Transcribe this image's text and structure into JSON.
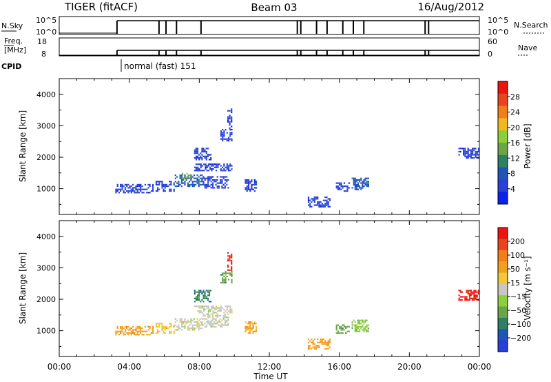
{
  "header": {
    "title_left": "TIGER (fitACF)",
    "title_center": "Beam 03",
    "title_right": "16/Aug/2012"
  },
  "status_panels": {
    "nsky_label": "N.Sky",
    "nsky_ticks": [
      "10^5",
      "10^0"
    ],
    "nsearch_label": "N.Search",
    "nsearch_ticks": [
      "10^5",
      "10^0"
    ],
    "freq_label_1": "Freq.",
    "freq_label_2": "[MHz]",
    "freq_ticks": [
      "18",
      "8"
    ],
    "nave_label": "Nave",
    "nave_ticks": [
      "60",
      "0"
    ],
    "cpid_label": "CPID",
    "cpid_value": "normal (fast) 151",
    "mode_change_hours": [
      3.3,
      5.7,
      6.1,
      6.7,
      8.1,
      13.6,
      13.8,
      14.7,
      15.3,
      16.2,
      16.8,
      17.4,
      20.9,
      21.1
    ]
  },
  "chart_data": [
    {
      "type": "scatter",
      "panel": "power",
      "ylabel": "Slant Range [km]",
      "xlabel": "",
      "xlim": [
        0,
        24
      ],
      "ylim": [
        180,
        4500
      ],
      "yticks": [
        "1000",
        "2000",
        "3000",
        "4000"
      ],
      "colorbar": {
        "label": "Power [dB]",
        "ticks": [
          "28",
          "24",
          "20",
          "16",
          "12",
          "8",
          "4"
        ],
        "colors": [
          "#0b22e8",
          "#2a3fd4",
          "#1f55b8",
          "#2f7f62",
          "#6aa54a",
          "#8ccf3a",
          "#f0b820",
          "#f07e1a",
          "#e84420",
          "#e81810"
        ]
      },
      "echo_regions": [
        {
          "x": [
            3.2,
            5.4
          ],
          "y": [
            850,
            1150
          ],
          "level": 1
        },
        {
          "x": [
            5.5,
            6.6
          ],
          "y": [
            900,
            1250
          ],
          "level": 1
        },
        {
          "x": [
            6.6,
            8.2
          ],
          "y": [
            1050,
            1450
          ],
          "level": 2
        },
        {
          "x": [
            7.0,
            7.6
          ],
          "y": [
            1300,
            1500
          ],
          "level": 4
        },
        {
          "x": [
            8.2,
            9.7
          ],
          "y": [
            1000,
            1400
          ],
          "level": 1
        },
        {
          "x": [
            7.7,
            9.9
          ],
          "y": [
            1550,
            1800
          ],
          "level": 1
        },
        {
          "x": [
            7.7,
            8.7
          ],
          "y": [
            1900,
            2300
          ],
          "level": 1
        },
        {
          "x": [
            9.2,
            9.9
          ],
          "y": [
            2500,
            2900
          ],
          "level": 1
        },
        {
          "x": [
            9.6,
            9.9
          ],
          "y": [
            2900,
            3550
          ],
          "level": 1
        },
        {
          "x": [
            10.6,
            11.3
          ],
          "y": [
            900,
            1300
          ],
          "level": 1
        },
        {
          "x": [
            14.2,
            15.5
          ],
          "y": [
            400,
            750
          ],
          "level": 1
        },
        {
          "x": [
            15.8,
            16.6
          ],
          "y": [
            900,
            1200
          ],
          "level": 1
        },
        {
          "x": [
            16.7,
            17.7
          ],
          "y": [
            950,
            1350
          ],
          "level": 2
        },
        {
          "x": [
            22.8,
            24.0
          ],
          "y": [
            1950,
            2300
          ],
          "level": 1
        }
      ]
    },
    {
      "type": "scatter",
      "panel": "velocity",
      "ylabel": "Slant Range [km]",
      "xlabel": "Time UT",
      "xlim": [
        0,
        24
      ],
      "ylim": [
        180,
        4500
      ],
      "xticks": [
        "00:00",
        "04:00",
        "08:00",
        "12:00",
        "16:00",
        "20:00",
        "00:00"
      ],
      "yticks": [
        "1000",
        "2000",
        "3000",
        "4000"
      ],
      "colorbar": {
        "label": "Velocity [m s⁻¹]",
        "ticks": [
          "200",
          "100",
          "50",
          "15",
          "−15",
          "−50",
          "−100",
          "−200"
        ],
        "colors": [
          "#2a3fd4",
          "#1f55b8",
          "#2f7f62",
          "#6aa54a",
          "#8ccf3a",
          "#c8c8c0",
          "#f0c838",
          "#f0a020",
          "#f07e1a",
          "#e84420",
          "#e81810"
        ]
      },
      "echo_regions": [
        {
          "x": [
            3.2,
            5.4
          ],
          "y": [
            850,
            1150
          ],
          "level": 7
        },
        {
          "x": [
            5.5,
            6.6
          ],
          "y": [
            900,
            1250
          ],
          "level": 6
        },
        {
          "x": [
            6.6,
            8.2
          ],
          "y": [
            1000,
            1400
          ],
          "level": 5
        },
        {
          "x": [
            8.2,
            9.7
          ],
          "y": [
            1100,
            1550
          ],
          "level": 5
        },
        {
          "x": [
            7.7,
            9.9
          ],
          "y": [
            1550,
            1800
          ],
          "level": 5
        },
        {
          "x": [
            7.7,
            8.7
          ],
          "y": [
            1900,
            2300
          ],
          "level": 2
        },
        {
          "x": [
            9.2,
            9.9
          ],
          "y": [
            2500,
            2900
          ],
          "level": 3
        },
        {
          "x": [
            9.6,
            9.9
          ],
          "y": [
            2900,
            3550
          ],
          "level": 10
        },
        {
          "x": [
            10.6,
            11.3
          ],
          "y": [
            900,
            1300
          ],
          "level": 7
        },
        {
          "x": [
            14.2,
            15.5
          ],
          "y": [
            400,
            750
          ],
          "level": 7
        },
        {
          "x": [
            15.8,
            16.6
          ],
          "y": [
            900,
            1200
          ],
          "level": 3
        },
        {
          "x": [
            16.7,
            17.7
          ],
          "y": [
            950,
            1350
          ],
          "level": 4
        },
        {
          "x": [
            22.8,
            24.0
          ],
          "y": [
            1950,
            2300
          ],
          "level": 10
        }
      ]
    }
  ]
}
